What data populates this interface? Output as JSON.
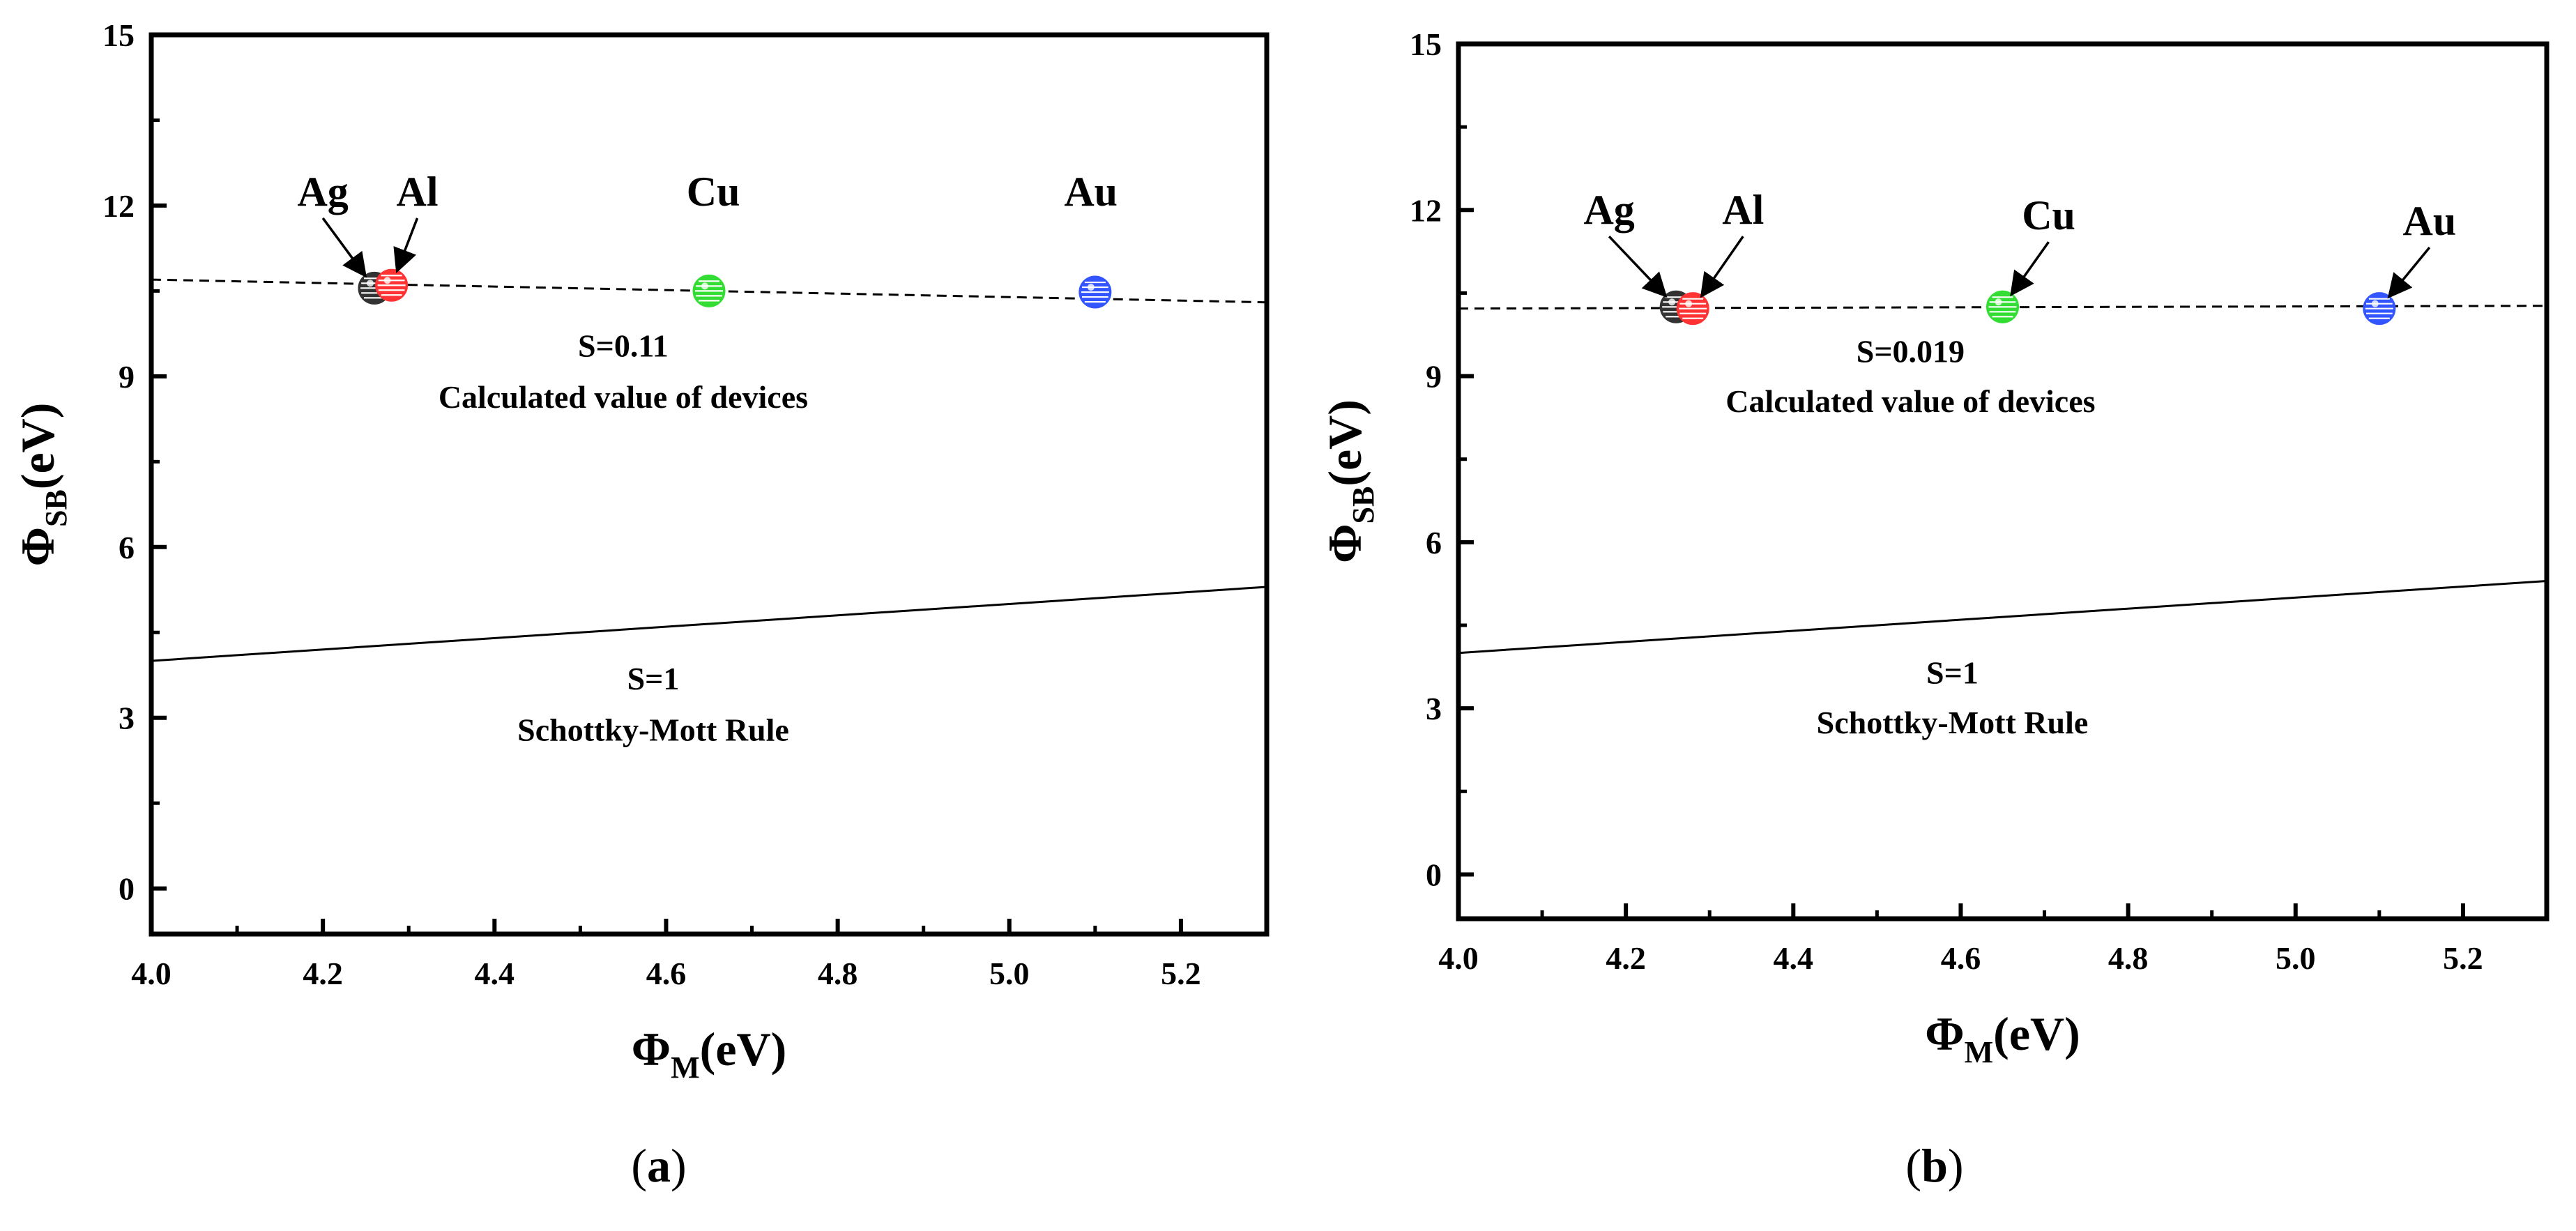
{
  "chart_data": [
    {
      "type": "scatter",
      "panel_label": {
        "open": "(",
        "letter": "a",
        "close": ")"
      },
      "xlabel": {
        "symbol": "Φ",
        "sub": "M",
        "unit": "(eV)"
      },
      "ylabel": {
        "symbol": "Φ",
        "sub": "SB",
        "unit": "(eV)"
      },
      "xlim": [
        4.0,
        5.3
      ],
      "ylim": [
        -0.8,
        15
      ],
      "xticks": [
        {
          "value": 4.0,
          "label": "4.0"
        },
        {
          "value": 4.2,
          "label": "4.2"
        },
        {
          "value": 4.4,
          "label": "4.4"
        },
        {
          "value": 4.6,
          "label": "4.6"
        },
        {
          "value": 4.8,
          "label": "4.8"
        },
        {
          "value": 5.0,
          "label": "5.0"
        },
        {
          "value": 5.2,
          "label": "5.2"
        }
      ],
      "yticks": [
        {
          "value": 0,
          "label": "0"
        },
        {
          "value": 3,
          "label": "3"
        },
        {
          "value": 6,
          "label": "6"
        },
        {
          "value": 9,
          "label": "9"
        },
        {
          "value": 12,
          "label": "12"
        },
        {
          "value": 15,
          "label": "15"
        }
      ],
      "points": [
        {
          "name": "Ag",
          "x": 4.26,
          "y": 10.55,
          "color": "#333333"
        },
        {
          "name": "Al",
          "x": 4.28,
          "y": 10.6,
          "color": "#ff3333"
        },
        {
          "name": "Cu",
          "x": 4.65,
          "y": 10.5,
          "color": "#33dd33"
        },
        {
          "name": "Au",
          "x": 5.1,
          "y": 10.48,
          "color": "#3355ff"
        }
      ],
      "point_labels": [
        {
          "text": "Ag",
          "x": 4.2,
          "y": 12.0,
          "arrow_to_point": 0
        },
        {
          "text": "Al",
          "x": 4.31,
          "y": 12.0,
          "arrow_to_point": 1
        },
        {
          "text": "Cu",
          "x": 4.655,
          "y": 12.0,
          "arrow_to_point": null
        },
        {
          "text": "Au",
          "x": 5.095,
          "y": 12.0,
          "arrow_to_point": null
        }
      ],
      "fit_line": {
        "style": "dashed",
        "x": [
          4.0,
          5.3
        ],
        "y": [
          10.7,
          10.3
        ]
      },
      "reference_line": {
        "style": "solid",
        "x": [
          4.0,
          5.3
        ],
        "y": [
          4.0,
          5.3
        ]
      },
      "annotations": [
        {
          "text": "S=0.11",
          "x": 4.55,
          "y": 9.35
        },
        {
          "text": "Calculated value of devices",
          "x": 4.55,
          "y": 8.45
        },
        {
          "text": "S=1",
          "x": 4.585,
          "y": 3.5
        },
        {
          "text": "Schottky-Mott Rule",
          "x": 4.585,
          "y": 2.6
        }
      ]
    },
    {
      "type": "scatter",
      "panel_label": {
        "open": "(",
        "letter": "b",
        "close": ")"
      },
      "xlabel": {
        "symbol": "Φ",
        "sub": "M",
        "unit": "(eV)"
      },
      "ylabel": {
        "symbol": "Φ",
        "sub": "SB",
        "unit": "(eV)"
      },
      "xlim": [
        4.0,
        5.3
      ],
      "ylim": [
        -0.8,
        15
      ],
      "xticks": [
        {
          "value": 4.0,
          "label": "4.0"
        },
        {
          "value": 4.2,
          "label": "4.2"
        },
        {
          "value": 4.4,
          "label": "4.4"
        },
        {
          "value": 4.6,
          "label": "4.6"
        },
        {
          "value": 4.8,
          "label": "4.8"
        },
        {
          "value": 5.0,
          "label": "5.0"
        },
        {
          "value": 5.2,
          "label": "5.2"
        }
      ],
      "yticks": [
        {
          "value": 0,
          "label": "0"
        },
        {
          "value": 3,
          "label": "3"
        },
        {
          "value": 6,
          "label": "6"
        },
        {
          "value": 9,
          "label": "9"
        },
        {
          "value": 12,
          "label": "12"
        },
        {
          "value": 15,
          "label": "15"
        }
      ],
      "points": [
        {
          "name": "Ag",
          "x": 4.26,
          "y": 10.25,
          "color": "#333333"
        },
        {
          "name": "Al",
          "x": 4.28,
          "y": 10.22,
          "color": "#ff3333"
        },
        {
          "name": "Cu",
          "x": 4.65,
          "y": 10.25,
          "color": "#33dd33"
        },
        {
          "name": "Au",
          "x": 5.1,
          "y": 10.22,
          "color": "#3355ff"
        }
      ],
      "point_labels": [
        {
          "text": "Ag",
          "x": 4.18,
          "y": 11.75,
          "arrow_to_point": 0
        },
        {
          "text": "Al",
          "x": 4.34,
          "y": 11.75,
          "arrow_to_point": 1
        },
        {
          "text": "Cu",
          "x": 4.705,
          "y": 11.65,
          "arrow_to_point": 2
        },
        {
          "text": "Au",
          "x": 5.16,
          "y": 11.55,
          "arrow_to_point": 3
        }
      ],
      "fit_line": {
        "style": "dashed",
        "x": [
          4.0,
          5.3
        ],
        "y": [
          10.22,
          10.27
        ]
      },
      "reference_line": {
        "style": "solid",
        "x": [
          4.0,
          5.3
        ],
        "y": [
          4.0,
          5.3
        ]
      },
      "annotations": [
        {
          "text": "S=0.019",
          "x": 4.54,
          "y": 9.25
        },
        {
          "text": "Calculated value of devices",
          "x": 4.54,
          "y": 8.35
        },
        {
          "text": "S=1",
          "x": 4.59,
          "y": 3.45
        },
        {
          "text": "Schottky-Mott Rule",
          "x": 4.59,
          "y": 2.55
        }
      ]
    }
  ]
}
